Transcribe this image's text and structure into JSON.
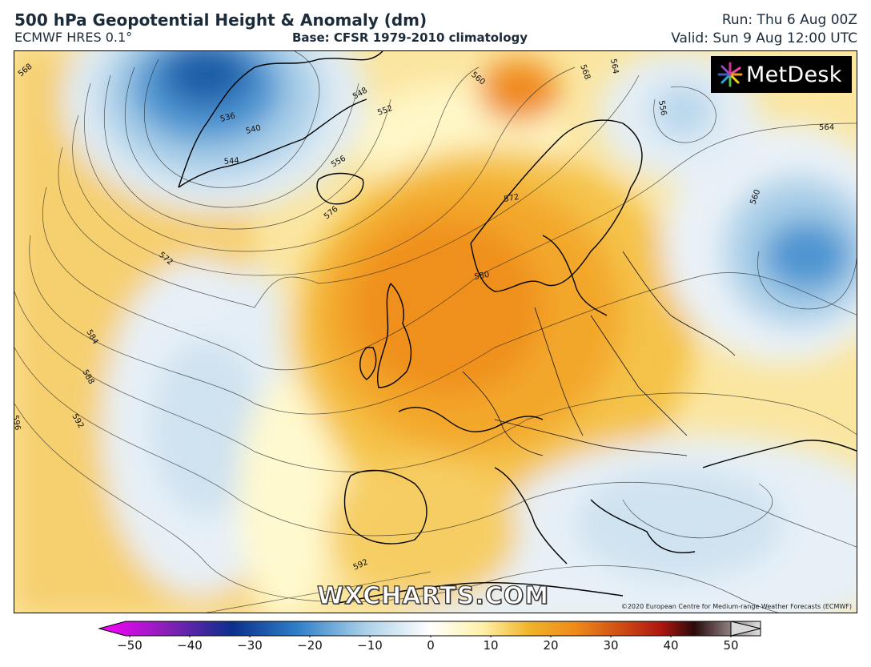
{
  "header": {
    "title": "500 hPa Geopotential Height & Anomaly (dm)",
    "model": "ECMWF HRES 0.1°",
    "base": "Base: CFSR 1979-2010 climatology",
    "run": "Run: Thu 6 Aug 00Z",
    "valid": "Valid: Sun 9 Aug 12:00 UTC"
  },
  "map": {
    "logo_text": "MetDesk",
    "watermark": "WXCHARTS.COM",
    "copyright": "©2020 European Centre for Medium-range Weather Forecasts (ECMWF)",
    "contour_labels": [
      "568",
      "536",
      "540",
      "544",
      "548",
      "552",
      "556",
      "560",
      "564",
      "568",
      "572",
      "576",
      "580",
      "584",
      "588",
      "592",
      "596",
      "556",
      "560",
      "564",
      "572",
      "592"
    ]
  },
  "colorbar": {
    "ticks": [
      "−50",
      "−40",
      "−30",
      "−20",
      "−10",
      "0",
      "10",
      "20",
      "30",
      "40",
      "50"
    ],
    "colors": {
      "min": "#ff00ff",
      "deep_purple": "#5a0a8c",
      "deep_blue": "#0b3c8c",
      "blue": "#2f7fc8",
      "light_blue": "#a9cfe8",
      "neutral": "#ffffff",
      "pale_yellow": "#fff3b0",
      "gold": "#f0b429",
      "orange": "#ef8a1a",
      "dark_red": "#8c1010",
      "max": "#d0d0d0"
    }
  }
}
